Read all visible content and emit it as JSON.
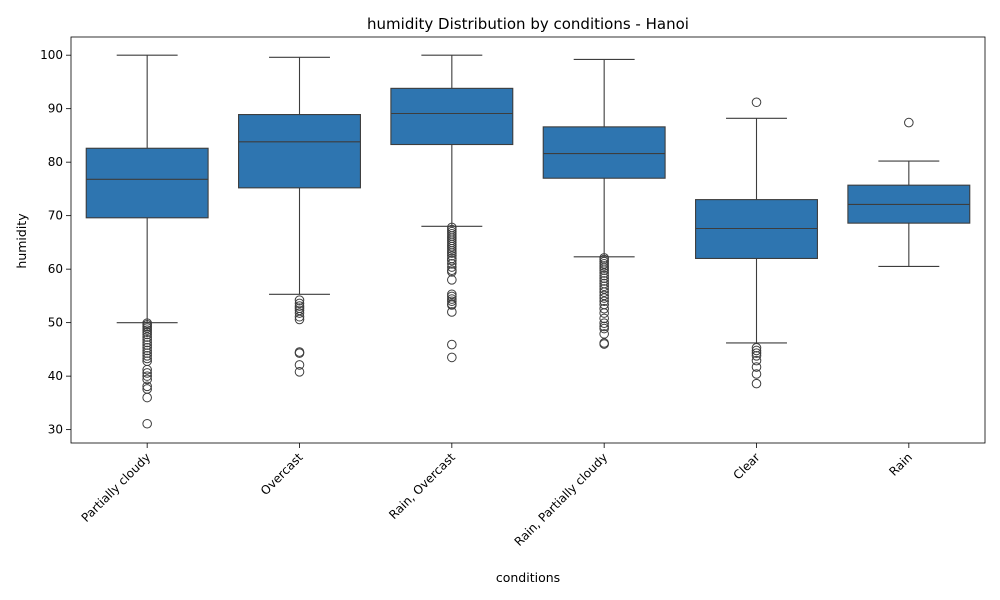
{
  "chart_data": {
    "type": "box",
    "title": "humidity Distribution by conditions - Hanoi",
    "xlabel": "conditions",
    "ylabel": "humidity",
    "ylim": [
      27.5,
      103.4
    ],
    "yticks": [
      30,
      40,
      50,
      60,
      70,
      80,
      90,
      100
    ],
    "grid": false,
    "legend": "none",
    "box_color": "#2e75b0",
    "line_color": "#3d3d3d",
    "categories": [
      "Partially cloudy",
      "Overcast",
      "Rain, Overcast",
      "Rain, Partially cloudy",
      "Clear",
      "Rain"
    ],
    "boxes": [
      {
        "category": "Partially cloudy",
        "whisker_low": 50.0,
        "q1": 69.6,
        "median": 76.8,
        "q3": 82.6,
        "whisker_high": 100.0,
        "outliers": [
          49.9,
          49.6,
          49.3,
          49.0,
          48.6,
          48.2,
          47.8,
          47.3,
          46.8,
          46.3,
          45.8,
          45.3,
          44.8,
          44.3,
          43.8,
          43.3,
          42.8,
          41.2,
          40.6,
          40.0,
          39.4,
          38.1,
          37.6,
          36.0,
          31.1
        ]
      },
      {
        "category": "Overcast",
        "whisker_low": 55.3,
        "q1": 75.2,
        "median": 83.8,
        "q3": 88.9,
        "whisker_high": 99.6,
        "outliers": [
          54.2,
          53.6,
          53.1,
          52.7,
          52.3,
          51.8,
          51.1,
          50.6,
          44.5,
          44.3,
          42.1,
          40.8
        ]
      },
      {
        "category": "Rain, Overcast",
        "whisker_low": 68.0,
        "q1": 83.3,
        "median": 89.1,
        "q3": 93.8,
        "whisker_high": 100.0,
        "outliers": [
          67.8,
          67.4,
          67.0,
          66.6,
          66.2,
          65.8,
          65.4,
          65.0,
          64.6,
          64.2,
          63.8,
          63.4,
          63.0,
          62.5,
          62.0,
          61.6,
          61.0,
          60.4,
          59.8,
          59.5,
          58.0,
          55.3,
          54.9,
          54.4,
          54.0,
          53.5,
          53.3,
          52.0,
          45.9,
          43.5
        ]
      },
      {
        "category": "Rain, Partially cloudy",
        "whisker_low": 62.3,
        "q1": 77.0,
        "median": 81.6,
        "q3": 86.6,
        "whisker_high": 99.2,
        "outliers": [
          62.1,
          61.8,
          61.4,
          61.0,
          60.6,
          60.2,
          59.8,
          59.3,
          58.8,
          58.3,
          57.8,
          57.3,
          56.8,
          56.3,
          55.7,
          55.1,
          54.6,
          54.0,
          53.4,
          52.6,
          51.8,
          50.8,
          49.9,
          49.3,
          48.9,
          47.9,
          46.2,
          46.0
        ]
      },
      {
        "category": "Clear",
        "whisker_low": 46.2,
        "q1": 62.0,
        "median": 67.6,
        "q3": 73.0,
        "whisker_high": 88.2,
        "outliers": [
          91.2,
          45.3,
          44.8,
          44.3,
          43.8,
          42.9,
          41.7,
          40.4,
          38.6
        ]
      },
      {
        "category": "Rain",
        "whisker_low": 60.5,
        "q1": 68.6,
        "median": 72.1,
        "q3": 75.7,
        "whisker_high": 80.2,
        "outliers": [
          87.4
        ]
      }
    ]
  }
}
